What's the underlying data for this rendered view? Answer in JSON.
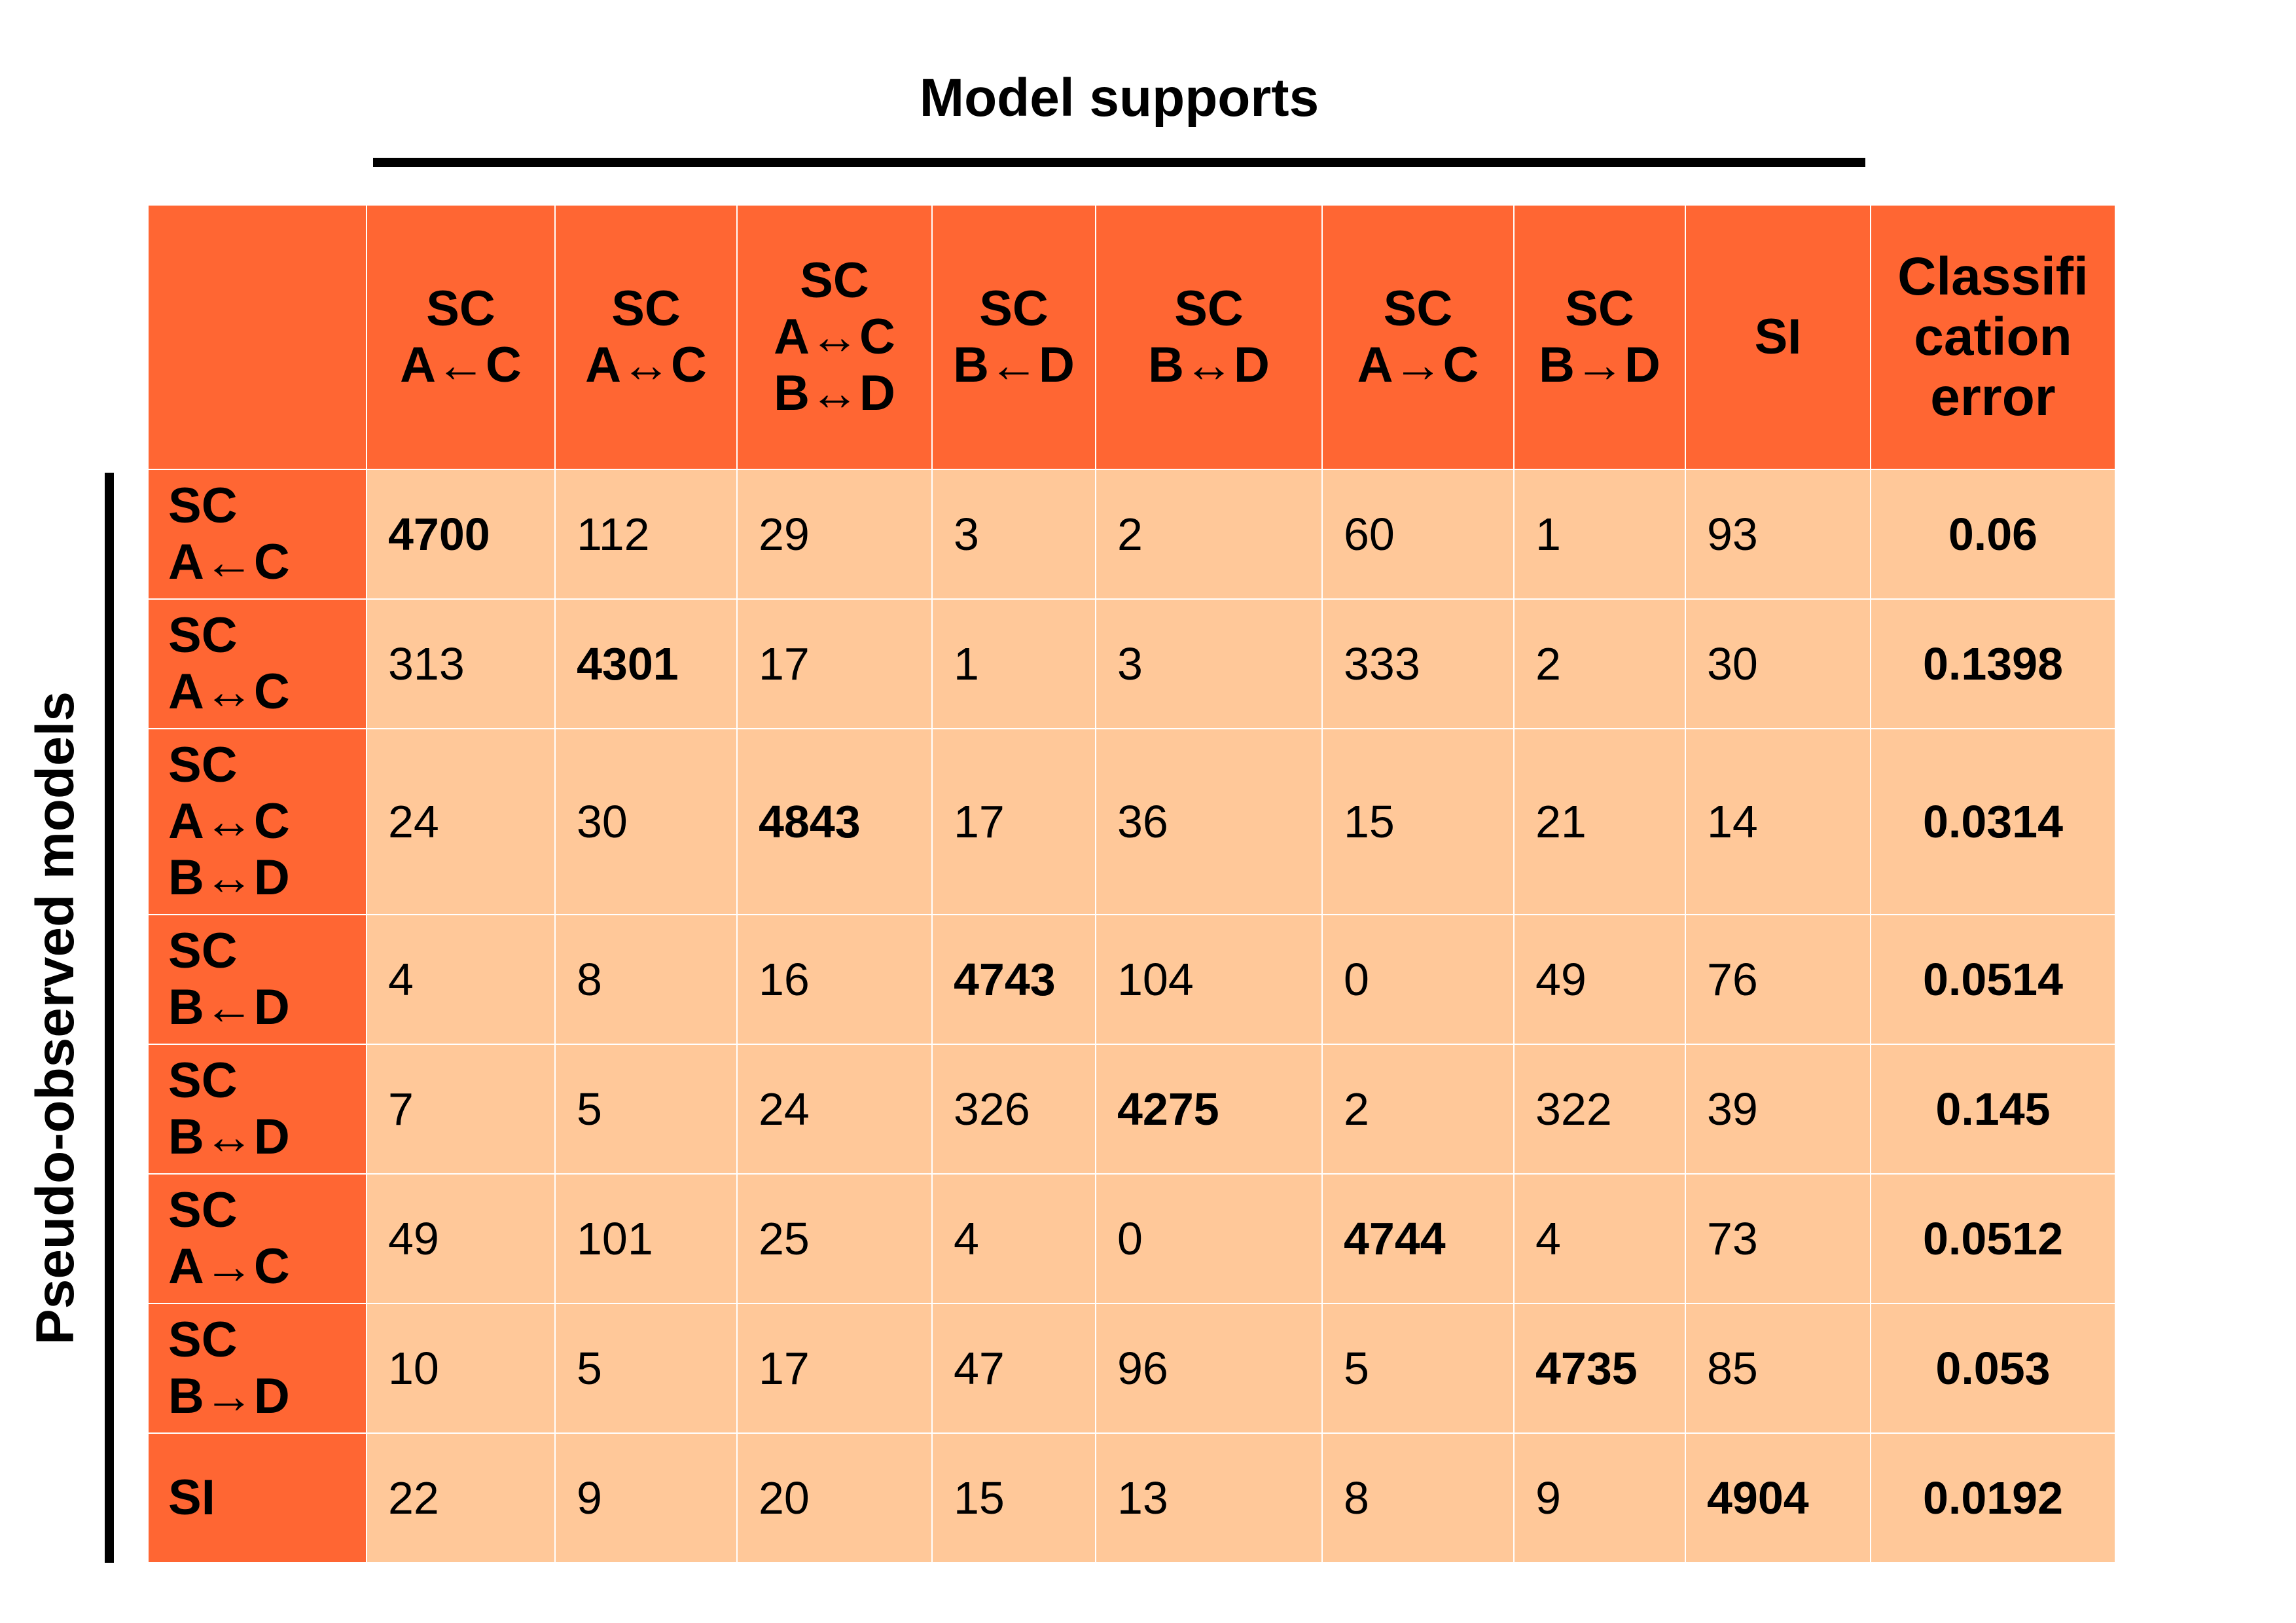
{
  "title_top": "Model supports",
  "title_side": "Pseudo-observed models",
  "chart_data": {
    "type": "table",
    "column_labels": [
      [
        "SC",
        "A←C"
      ],
      [
        "SC",
        "A↔C"
      ],
      [
        "SC",
        "A↔C",
        "B↔D"
      ],
      [
        "SC",
        "B←D"
      ],
      [
        "SC",
        "B↔D"
      ],
      [
        "SC",
        "A→C"
      ],
      [
        "SC",
        "B→D"
      ],
      [
        "SI"
      ]
    ],
    "error_header": [
      "Classifi",
      "cation",
      "error"
    ],
    "rows": [
      {
        "label": [
          "SC",
          "A←C"
        ],
        "values": [
          "4700",
          "112",
          "29",
          "3",
          "2",
          "60",
          "1",
          "93"
        ],
        "error": "0.06"
      },
      {
        "label": [
          "SC",
          "A↔C"
        ],
        "values": [
          "313",
          "4301",
          "17",
          "1",
          "3",
          "333",
          "2",
          "30"
        ],
        "error": "0.1398"
      },
      {
        "label": [
          "SC",
          "A↔C",
          "B↔D"
        ],
        "values": [
          "24",
          "30",
          "4843",
          "17",
          "36",
          "15",
          "21",
          "14"
        ],
        "error": "0.0314"
      },
      {
        "label": [
          "SC",
          "B←D"
        ],
        "values": [
          "4",
          "8",
          "16",
          "4743",
          "104",
          "0",
          "49",
          "76"
        ],
        "error": "0.0514"
      },
      {
        "label": [
          "SC",
          "B↔D"
        ],
        "values": [
          "7",
          "5",
          "24",
          "326",
          "4275",
          "2",
          "322",
          "39"
        ],
        "error": "0.145"
      },
      {
        "label": [
          "SC",
          "A→C"
        ],
        "values": [
          "49",
          "101",
          "25",
          "4",
          "0",
          "4744",
          "4",
          "73"
        ],
        "error": "0.0512"
      },
      {
        "label": [
          "SC",
          "B→D"
        ],
        "values": [
          "10",
          "5",
          "17",
          "47",
          "96",
          "5",
          "4735",
          "85"
        ],
        "error": "0.053"
      },
      {
        "label": [
          "SI"
        ],
        "values": [
          "22",
          "9",
          "20",
          "15",
          "13",
          "8",
          "9",
          "4904"
        ],
        "error": "0.0192"
      }
    ]
  },
  "colors": {
    "header_bg": "#ff6633",
    "cell_bg": "#ffc899",
    "rule": "#000000"
  }
}
